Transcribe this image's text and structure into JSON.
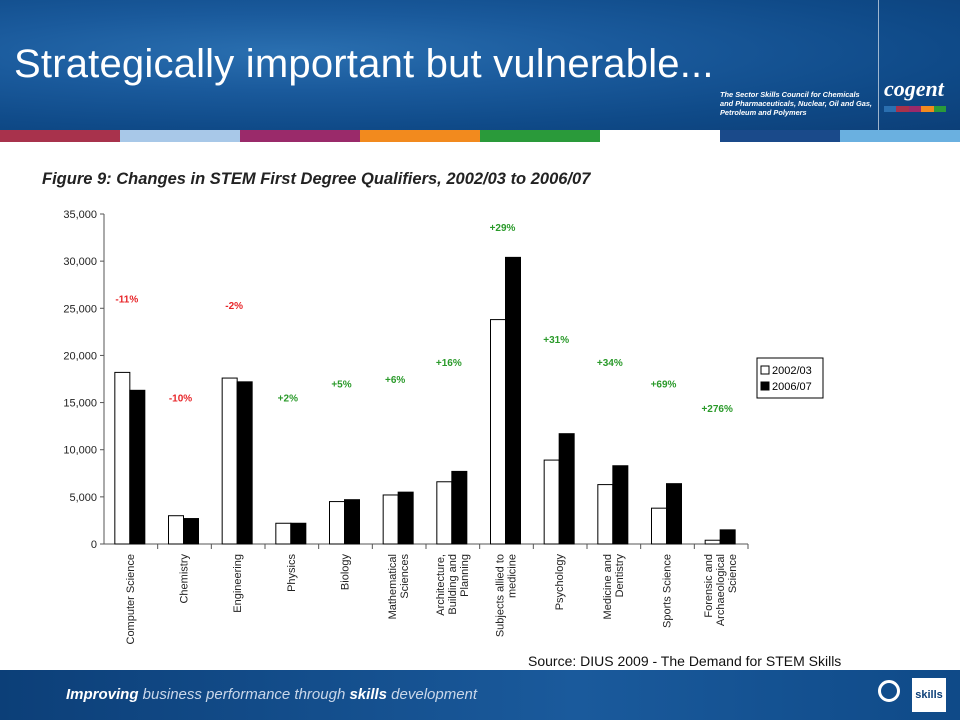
{
  "header": {
    "title": "Strategically important but vulnerable...",
    "tagline": "The Sector Skills Council for Chemicals and Pharmaceuticals, Nuclear, Oil and Gas, Petroleum and Polymers",
    "logo_text": "cogent",
    "stripe_colors": [
      "#a8324c",
      "#a8c8e8",
      "#9a2a6a",
      "#f28a1e",
      "#2a9a3a",
      "#ffffff",
      "#1a4a8a",
      "#6ab0e0"
    ],
    "logo_bar_colors": [
      "#2a6fb0",
      "#a8324c",
      "#9a2a6a",
      "#f28a1e",
      "#2a9a3a"
    ]
  },
  "figure_title": "Figure 9: Changes in STEM First Degree Qualifiers, 2002/03 to 2006/07",
  "source": "Source: DIUS 2009 - The Demand for STEM Skills",
  "footer": {
    "text_strong1": "Improving",
    "text_rest1": " business performance through ",
    "text_strong2": "skills",
    "text_rest2": " development",
    "badge": "skills"
  },
  "chart_data": {
    "type": "bar",
    "categories": [
      "Computer Science",
      "Chemistry",
      "Engineering",
      "Physics",
      "Biology",
      "Mathematical Sciences",
      "Architecture, Building and Planning",
      "Subjects allied to medicine",
      "Psychology",
      "Medicine and Dentistry",
      "Sports Science",
      "Forensic and Archaeological Science"
    ],
    "category_lines": [
      [
        "Computer Science"
      ],
      [
        "Chemistry"
      ],
      [
        "Engineering"
      ],
      [
        "Physics"
      ],
      [
        "Biology"
      ],
      [
        "Mathematical",
        "Sciences"
      ],
      [
        "Architecture,",
        "Building and",
        "Planning"
      ],
      [
        "Subjects allied to",
        "medicine"
      ],
      [
        "Psychology"
      ],
      [
        "Medicine and",
        "Dentistry"
      ],
      [
        "Sports Science"
      ],
      [
        "Forensic and",
        "Archaeological",
        "Science"
      ]
    ],
    "series": [
      {
        "name": "2002/03",
        "color": "#ffffff",
        "values": [
          18200,
          3000,
          17600,
          2200,
          4500,
          5200,
          6600,
          23800,
          8900,
          6300,
          3800,
          400
        ]
      },
      {
        "name": "2006/07",
        "color": "#000000",
        "values": [
          16300,
          2700,
          17200,
          2200,
          4700,
          5500,
          7700,
          30400,
          11700,
          8300,
          6400,
          1500
        ]
      }
    ],
    "annotations": [
      "-11%",
      "-10%",
      "-2%",
      "+2%",
      "+5%",
      "+6%",
      "+16%",
      "+29%",
      "+31%",
      "+34%",
      "+69%",
      "+276%"
    ],
    "annotation_y": [
      25600,
      15100,
      24900,
      15100,
      16600,
      17100,
      18900,
      33200,
      21300,
      18900,
      16600,
      14000
    ],
    "negative_color": "#e8262a",
    "positive_color": "#2a9a2a",
    "ylim": [
      0,
      35000
    ],
    "yticks": [
      0,
      5000,
      10000,
      15000,
      20000,
      25000,
      30000,
      35000
    ],
    "ytick_labels": [
      "0",
      "5,000",
      "10,000",
      "15,000",
      "20,000",
      "25,000",
      "30,000",
      "35,000"
    ],
    "legend_position": "right",
    "grid": false
  }
}
